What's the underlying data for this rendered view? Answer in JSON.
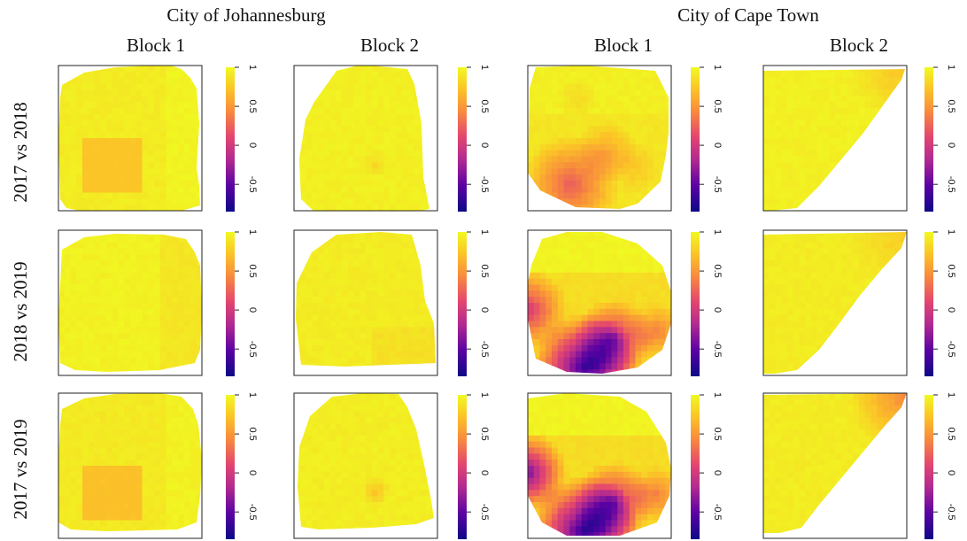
{
  "chart_data": {
    "type": "heatmap",
    "title": "",
    "city_labels": [
      "City of Johannesburg",
      "City of Cape Town"
    ],
    "block_labels": [
      "Block 1",
      "Block 2",
      "Block 1",
      "Block 2"
    ],
    "row_labels": [
      "2017 vs 2018",
      "2018 vs 2019",
      "2017 vs 2019"
    ],
    "colorbar": {
      "zlim": [
        -0.85,
        1
      ],
      "ticks": [
        -0.5,
        0,
        0.5,
        1
      ],
      "tick_labels": [
        "-0.5",
        "0",
        "0.5",
        "1"
      ],
      "palette": [
        "#0d0887",
        "#6a00a8",
        "#b12a90",
        "#e16462",
        "#fca636",
        "#f0f921"
      ]
    },
    "panels": [
      {
        "row": 0,
        "col": 0,
        "city": "City of Johannesburg",
        "block": "Block 1",
        "comparison": "2017 vs 2018",
        "base": 0.93,
        "min": 0.72,
        "max": 1.0,
        "low_region": "central square",
        "low_value": 0.72
      },
      {
        "row": 0,
        "col": 1,
        "city": "City of Johannesburg",
        "block": "Block 2",
        "comparison": "2017 vs 2018",
        "base": 0.95,
        "min": 0.8,
        "max": 1.0,
        "low_region": "center spot",
        "low_value": 0.82
      },
      {
        "row": 0,
        "col": 2,
        "city": "City of Cape Town",
        "block": "Block 1",
        "comparison": "2017 vs 2018",
        "base": 0.9,
        "min": 0.25,
        "max": 1.0,
        "low_region": "lower left",
        "low_value": 0.3
      },
      {
        "row": 0,
        "col": 3,
        "city": "City of Cape Town",
        "block": "Block 2",
        "comparison": "2017 vs 2018",
        "base": 0.95,
        "min": 0.7,
        "max": 1.0,
        "low_region": "upper right corner",
        "low_value": 0.75
      },
      {
        "row": 1,
        "col": 0,
        "city": "City of Johannesburg",
        "block": "Block 1",
        "comparison": "2018 vs 2019",
        "base": 0.92,
        "min": 0.88,
        "max": 1.0,
        "low_region": "none",
        "low_value": 0.9
      },
      {
        "row": 1,
        "col": 1,
        "city": "City of Johannesburg",
        "block": "Block 2",
        "comparison": "2018 vs 2019",
        "base": 0.93,
        "min": 0.85,
        "max": 1.0,
        "low_region": "lower right",
        "low_value": 0.86
      },
      {
        "row": 1,
        "col": 2,
        "city": "City of Cape Town",
        "block": "Block 1",
        "comparison": "2018 vs 2019",
        "base": 0.85,
        "min": -0.7,
        "max": 1.0,
        "low_region": "bottom and left edge",
        "low_value": -0.6
      },
      {
        "row": 1,
        "col": 3,
        "city": "City of Cape Town",
        "block": "Block 2",
        "comparison": "2018 vs 2019",
        "base": 0.93,
        "min": 0.75,
        "max": 1.0,
        "low_region": "upper right corner",
        "low_value": 0.78
      },
      {
        "row": 2,
        "col": 0,
        "city": "City of Johannesburg",
        "block": "Block 1",
        "comparison": "2017 vs 2019",
        "base": 0.92,
        "min": 0.7,
        "max": 1.0,
        "low_region": "central square",
        "low_value": 0.7
      },
      {
        "row": 2,
        "col": 1,
        "city": "City of Johannesburg",
        "block": "Block 2",
        "comparison": "2017 vs 2019",
        "base": 0.94,
        "min": 0.72,
        "max": 1.0,
        "low_region": "center spot",
        "low_value": 0.72
      },
      {
        "row": 2,
        "col": 2,
        "city": "City of Cape Town",
        "block": "Block 1",
        "comparison": "2017 vs 2019",
        "base": 0.85,
        "min": -0.75,
        "max": 1.0,
        "low_region": "bottom and left edge",
        "low_value": -0.7
      },
      {
        "row": 2,
        "col": 3,
        "city": "City of Cape Town",
        "block": "Block 2",
        "comparison": "2017 vs 2019",
        "base": 0.93,
        "min": 0.4,
        "max": 1.0,
        "low_region": "upper right corner",
        "low_value": 0.45
      }
    ]
  }
}
